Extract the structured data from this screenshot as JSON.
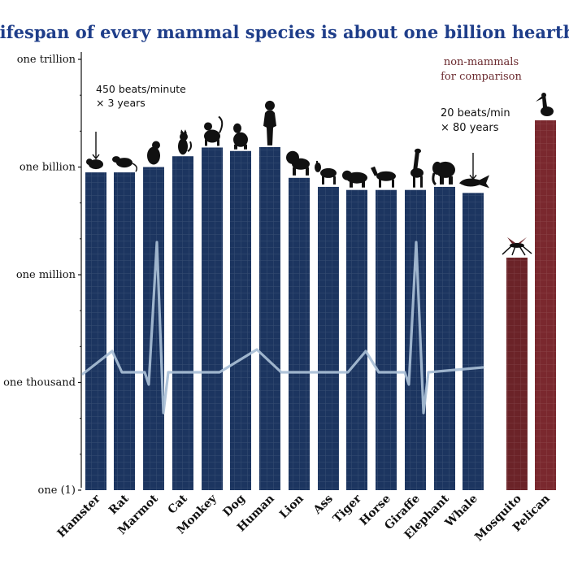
{
  "chart_data": {
    "type": "bar",
    "title": "The lifespan of every mammal species is about one billion heartbeats",
    "y_scale": "log",
    "ylim": [
      1,
      1000000000000
    ],
    "y_ticks": [
      {
        "value": 1,
        "label": "one (1)"
      },
      {
        "value": 1000,
        "label": "one thousand"
      },
      {
        "value": 1000000,
        "label": "one million"
      },
      {
        "value": 1000000000,
        "label": "one billion"
      },
      {
        "value": 1000000000000,
        "label": "one trillion"
      }
    ],
    "categories": [
      "Hamster",
      "Rat",
      "Marmot",
      "Cat",
      "Monkey",
      "Dog",
      "Human",
      "Lion",
      "Ass",
      "Tiger",
      "Horse",
      "Giraffe",
      "Elephant",
      "Whale",
      "Mosquito",
      "Pelican"
    ],
    "series": [
      {
        "values": [
          710000000,
          710000000,
          1000000000,
          2000000000,
          3500000000,
          2800000000,
          3600000000,
          500000000,
          280000000,
          230000000,
          230000000,
          230000000,
          280000000,
          190000000,
          3000000,
          20000000000
        ],
        "groups": [
          "mammal",
          "mammal",
          "mammal",
          "mammal",
          "mammal",
          "mammal",
          "mammal",
          "mammal",
          "mammal",
          "mammal",
          "mammal",
          "mammal",
          "mammal",
          "mammal",
          "non-mammal",
          "non-mammal"
        ]
      }
    ],
    "annotations": {
      "left_line1": "450 beats/minute",
      "left_line2": "× 3 years",
      "right_line1": "20 beats/min",
      "right_line2": "× 80 years",
      "nonmammal_line1": "non-mammals",
      "nonmammal_line2": "for comparison"
    },
    "colors": {
      "mammal": "#1c3560",
      "non_mammal": "#6b2328",
      "pelican": "#7a282e",
      "heartbeat_line": "#a9bfd6",
      "title": "#1f3e8a",
      "silhouette": "#111111"
    },
    "icons": [
      "hamster-icon",
      "rat-icon",
      "marmot-icon",
      "cat-icon",
      "monkey-icon",
      "dog-icon",
      "human-icon",
      "lion-icon",
      "ass-icon",
      "tiger-icon",
      "horse-icon",
      "giraffe-icon",
      "elephant-icon",
      "whale-icon",
      "mosquito-icon",
      "pelican-icon"
    ],
    "grid": true
  }
}
